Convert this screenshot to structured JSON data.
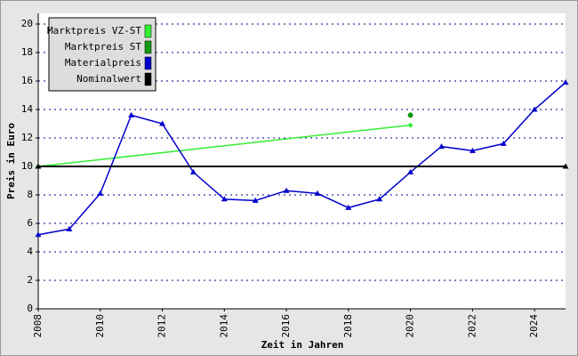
{
  "chart_data": {
    "type": "line",
    "xlabel": "Zeit in Jahren",
    "ylabel": "Preis in Euro",
    "xlim": [
      2008,
      2025
    ],
    "xticks": [
      2008,
      2010,
      2012,
      2014,
      2016,
      2018,
      2020,
      2022,
      2024
    ],
    "ylim": [
      0,
      20
    ],
    "yticks": [
      0,
      2,
      4,
      6,
      8,
      10,
      12,
      14,
      16,
      18,
      20
    ],
    "grid": true,
    "legend": "upper left",
    "series": [
      {
        "name": "Marktpreis VZ-ST",
        "color": "#33ee33",
        "marker": "diamond",
        "x": [
          2008,
          2020
        ],
        "values": [
          10,
          12.9
        ]
      },
      {
        "name": "Marktpreis ST",
        "color": "#119911",
        "marker": "circle",
        "x": [
          2020
        ],
        "values": [
          13.6
        ]
      },
      {
        "name": "Materialpreis",
        "color": "#0000cc",
        "marker": "triangle",
        "x": [
          2008,
          2009,
          2010,
          2011,
          2012,
          2013,
          2014,
          2015,
          2016,
          2017,
          2018,
          2019,
          2020,
          2021,
          2022,
          2023,
          2024,
          2025
        ],
        "values": [
          5.2,
          5.6,
          8.1,
          13.6,
          13.0,
          9.6,
          7.7,
          7.6,
          8.3,
          8.1,
          7.1,
          7.7,
          9.6,
          11.4,
          11.1,
          11.6,
          14.0,
          15.9
        ]
      },
      {
        "name": "Nominalwert",
        "color": "#000000",
        "marker": "triangle",
        "x": [
          2008,
          2025
        ],
        "values": [
          10,
          10
        ]
      }
    ]
  }
}
